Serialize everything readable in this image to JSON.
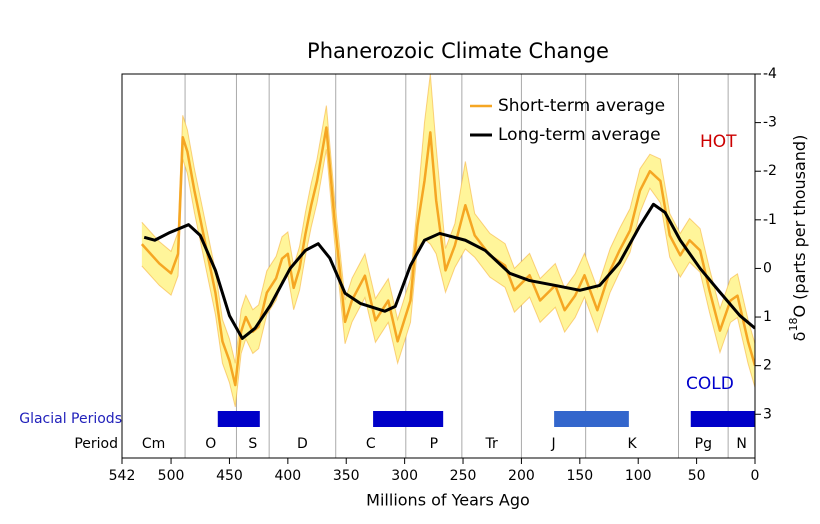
{
  "chart_data": {
    "type": "line",
    "title": "Phanerozoic Climate Change",
    "xlabel": "Millions of Years Ago",
    "ylabel": {
      "base": "δ",
      "sup": "18",
      "rest": "O (parts per thousand)"
    },
    "xlim": [
      542,
      0
    ],
    "xticks": [
      542,
      500,
      450,
      400,
      350,
      300,
      250,
      200,
      150,
      100,
      50,
      0
    ],
    "ylim": [
      -4,
      3.9
    ],
    "y_inverted": true,
    "y_axis_side": "right",
    "yticks": [
      -4,
      -3,
      -2,
      -1,
      0,
      1,
      2,
      3
    ],
    "legend": "top-right",
    "annotations": {
      "hot": "HOT",
      "cold": "COLD",
      "hot_color": "#cc0000",
      "cold_color": "#0000cc"
    },
    "series": [
      {
        "name": "Short-term average",
        "color": "#f5a623",
        "band_color": "#fff59a",
        "x": [
          525,
          510,
          500,
          494,
          490,
          486,
          480,
          474,
          468,
          462,
          456,
          450,
          445,
          440,
          436,
          430,
          425,
          418,
          410,
          405,
          400,
          395,
          390,
          385,
          380,
          375,
          367,
          360,
          351,
          345,
          334,
          325,
          314,
          306,
          295,
          289,
          283,
          278,
          273,
          265,
          257,
          248,
          240,
          227,
          214,
          206,
          193,
          184,
          171,
          163,
          154,
          146,
          135,
          124,
          116,
          107,
          98.5,
          90,
          81,
          73,
          64,
          56,
          47,
          39,
          30,
          21,
          15,
          6,
          0
        ],
        "values": [
          -0.5,
          -0.1,
          0.1,
          -0.3,
          -2.7,
          -2.4,
          -1.6,
          -0.9,
          -0.2,
          0.5,
          1.5,
          1.9,
          2.4,
          1.3,
          1.0,
          1.3,
          1.2,
          0.5,
          0.2,
          -0.2,
          -0.3,
          0.4,
          0.0,
          -0.7,
          -1.3,
          -1.8,
          -2.9,
          -1.0,
          1.1,
          0.65,
          0.15,
          1.07,
          0.66,
          1.5,
          0.66,
          -0.88,
          -1.8,
          -2.8,
          -1.4,
          0.04,
          -0.47,
          -1.3,
          -0.68,
          -0.27,
          -0.06,
          0.45,
          0.14,
          0.66,
          0.35,
          0.86,
          0.56,
          0.14,
          0.86,
          0.04,
          -0.37,
          -0.78,
          -1.6,
          -2.0,
          -1.8,
          -0.68,
          -0.27,
          -0.58,
          -0.37,
          0.45,
          1.28,
          0.66,
          0.56,
          1.5,
          2.0
        ],
        "band_high": [
          -0.95,
          -0.55,
          -0.35,
          -0.75,
          -3.15,
          -2.85,
          -2.05,
          -1.35,
          -0.65,
          0.05,
          1.05,
          1.45,
          1.95,
          0.85,
          0.55,
          0.85,
          0.75,
          0.05,
          -0.25,
          -0.65,
          -0.75,
          -0.05,
          -0.45,
          -1.15,
          -1.75,
          -2.25,
          -3.35,
          -1.45,
          0.65,
          0.2,
          -0.3,
          0.62,
          0.21,
          1.05,
          0.21,
          -1.33,
          -3.0,
          -4.0,
          -2.5,
          -0.41,
          -0.92,
          -2.2,
          -1.13,
          -0.72,
          -0.51,
          0.0,
          -0.31,
          0.21,
          -0.1,
          0.41,
          0.11,
          -0.31,
          0.41,
          -0.41,
          -0.82,
          -1.23,
          -2.05,
          -2.35,
          -2.25,
          -1.13,
          -0.72,
          -1.03,
          -0.82,
          0.0,
          0.83,
          0.21,
          0.11,
          1.05,
          1.55
        ],
        "band_low": [
          -0.05,
          0.35,
          0.55,
          0.15,
          -2.25,
          -1.95,
          -1.15,
          -0.45,
          0.25,
          0.95,
          1.95,
          2.35,
          2.85,
          1.75,
          1.45,
          1.75,
          1.65,
          0.95,
          0.65,
          0.25,
          0.15,
          0.85,
          0.45,
          -0.25,
          -0.85,
          -1.35,
          -2.45,
          -0.55,
          1.55,
          1.1,
          0.6,
          1.52,
          1.11,
          1.95,
          1.11,
          -0.43,
          -0.6,
          -0.5,
          -0.3,
          0.49,
          -0.02,
          -0.4,
          -0.23,
          0.18,
          0.39,
          0.9,
          0.59,
          1.11,
          0.8,
          1.31,
          1.01,
          0.59,
          1.31,
          0.49,
          0.08,
          -0.33,
          -1.15,
          -1.65,
          -1.35,
          -0.23,
          0.18,
          -0.13,
          0.08,
          0.9,
          1.73,
          1.11,
          1.01,
          1.95,
          2.45
        ]
      },
      {
        "name": "Long-term average",
        "color": "#000000",
        "x": [
          523,
          514,
          501,
          485,
          475,
          462,
          450,
          439,
          428,
          415,
          398,
          385,
          374,
          364,
          351,
          338,
          317,
          308,
          295,
          283,
          270,
          248,
          231,
          210,
          193,
          171,
          150,
          133,
          116,
          98.5,
          87,
          77,
          64,
          47,
          30,
          13,
          0
        ],
        "values": [
          -0.64,
          -0.58,
          -0.74,
          -0.9,
          -0.68,
          0.04,
          0.97,
          1.44,
          1.23,
          0.76,
          0,
          -0.37,
          -0.51,
          -0.21,
          0.51,
          0.72,
          0.88,
          0.78,
          -0.06,
          -0.58,
          -0.72,
          -0.58,
          -0.37,
          0.1,
          0.25,
          0.35,
          0.45,
          0.35,
          -0.12,
          -0.88,
          -1.32,
          -1.15,
          -0.58,
          0,
          0.49,
          0.97,
          1.23
        ]
      }
    ],
    "periods": {
      "label": "Period",
      "boundaries": [
        542,
        488,
        444,
        416,
        359,
        299,
        251,
        200,
        145,
        65.5,
        23,
        0
      ],
      "names": [
        "Cm",
        "O",
        "S",
        "D",
        "C",
        "P",
        "Tr",
        "J",
        "K",
        "Pg",
        "N"
      ]
    },
    "glacial_periods": {
      "label": "Glacial Periods",
      "label_color": "#2222bb",
      "bars": [
        {
          "start": 460,
          "end": 424,
          "color": "#0000c8"
        },
        {
          "start": 327,
          "end": 267,
          "color": "#0000c8"
        },
        {
          "start": 172,
          "end": 108,
          "color": "#3366cc"
        },
        {
          "start": 55,
          "end": 0,
          "color": "#0000c8"
        }
      ]
    }
  }
}
